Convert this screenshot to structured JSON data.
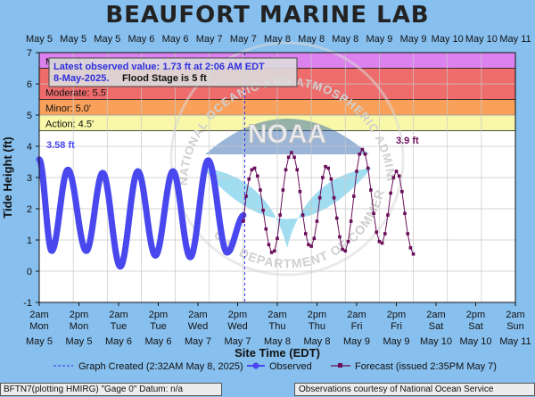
{
  "page": {
    "title": "BEAUFORT MARINE LAB",
    "footer_left": "BFTN7(plotting HMIRG) \"Gage 0\" Datum: n/a",
    "footer_right": "Observations courtesy of National Ocean Service"
  },
  "chart_data": {
    "type": "line",
    "xlabel": "Site Time (EDT)",
    "ylabel": "Tide Height (ft)",
    "ylim": [
      -1,
      7
    ],
    "y_ticks": [
      -1,
      0,
      1,
      2,
      3,
      4,
      5,
      6,
      7
    ],
    "grid": true,
    "x_hours_range": [
      0,
      168
    ],
    "top_tick_labels": [
      "May 5",
      "May 5",
      "May 5",
      "May 6",
      "May 6",
      "May 7",
      "May 7",
      "May 8",
      "May 8",
      "May 8",
      "May 9",
      "May 9",
      "May 10",
      "May 10",
      "May 11"
    ],
    "bottom_time_labels": [
      "2am",
      "2pm",
      "2am",
      "2pm",
      "2am",
      "2pm",
      "2am",
      "2pm",
      "2am",
      "2pm",
      "2am",
      "2pm",
      "2am"
    ],
    "bottom_day_labels": [
      "Mon",
      "Mon",
      "Tue",
      "Tue",
      "Wed",
      "Wed",
      "Thu",
      "Thu",
      "Fri",
      "Fri",
      "Sat",
      "Sat",
      "Sun"
    ],
    "bottom_date_labels": [
      "May 5",
      "May 5",
      "May 6",
      "May 6",
      "May 7",
      "May 7",
      "May 8",
      "May 8",
      "May 9",
      "May 9",
      "May 10",
      "May 10",
      "May 11"
    ],
    "flood_categories": [
      {
        "label": "Major: 6.5'",
        "from": 6.5,
        "to": 7,
        "color": "#dc82ee"
      },
      {
        "label": "Moderate: 5.5'",
        "from": 5.5,
        "to": 6.5,
        "color": "#ee6c6c"
      },
      {
        "label": "Minor: 5.0'",
        "from": 5.0,
        "to": 5.5,
        "color": "#f9a15b"
      },
      {
        "label": "Action: 4.5'",
        "from": 4.5,
        "to": 5.0,
        "color": "#f8f8a8"
      }
    ],
    "annotation": {
      "line1": "Latest observed value: 1.73 ft at 2:06 AM EDT",
      "line2a": "8-May-2025.",
      "line2b": "Flood Stage is 5 ft"
    },
    "labels": {
      "observed_start": "3.58 ft",
      "forecast_max": "3.9 ft"
    },
    "graph_created_hour": 72.5,
    "observed": {
      "name": "Observed",
      "color": "#4848ee",
      "start_hour": 0,
      "end_hour": 72.1,
      "high_tides": [
        {
          "h": 10.1,
          "v": 3.25
        },
        {
          "h": 22.4,
          "v": 3.15
        },
        {
          "h": 34.8,
          "v": 3.2
        },
        {
          "h": 47.2,
          "v": 3.2
        },
        {
          "h": 59.6,
          "v": 3.55
        },
        {
          "h": 72.3,
          "v": 1.8
        }
      ],
      "low_tides": [
        {
          "h": 4.4,
          "v": 0.65
        },
        {
          "h": 16.6,
          "v": 0.65
        },
        {
          "h": 28.6,
          "v": 0.15
        },
        {
          "h": 41.0,
          "v": 0.5
        },
        {
          "h": 53.3,
          "v": 0.45
        },
        {
          "h": 66.3,
          "v": 0.6
        }
      ],
      "start_value": 3.58
    },
    "forecast": {
      "name": "Forecast (issued 2:35PM May 7)",
      "color": "#6a0f5a",
      "interval_hours": 1,
      "start_hour": 72,
      "values": [
        1.6,
        2.4,
        2.95,
        3.25,
        3.3,
        3.05,
        2.6,
        1.95,
        1.35,
        0.85,
        0.6,
        0.65,
        1.05,
        1.8,
        2.6,
        3.25,
        3.65,
        3.8,
        3.65,
        3.25,
        2.55,
        1.8,
        1.2,
        0.85,
        0.8,
        1.05,
        1.6,
        2.35,
        3.0,
        3.35,
        3.3,
        2.95,
        2.35,
        1.7,
        1.1,
        0.7,
        0.65,
        0.95,
        1.6,
        2.4,
        3.2,
        3.75,
        3.9,
        3.75,
        3.3,
        2.6,
        1.85,
        1.25,
        0.95,
        0.9,
        1.2,
        1.8,
        2.5,
        3.0,
        3.2,
        3.05,
        2.55,
        1.85,
        1.2,
        0.75,
        0.55
      ]
    },
    "legend": [
      {
        "label": "Graph Created (2:32AM May 8, 2025)",
        "style": "dashed"
      },
      {
        "label": "Observed",
        "style": "observed"
      },
      {
        "label": "Forecast (issued 2:35PM May 7)",
        "style": "forecast"
      }
    ],
    "watermark": {
      "text_top": "NATIONAL OCEANIC AND ATMOSPHERIC ADMINISTRATION",
      "text_bottom": "U.S. DEPARTMENT OF COMMERCE",
      "center_text": "NOAA"
    }
  }
}
